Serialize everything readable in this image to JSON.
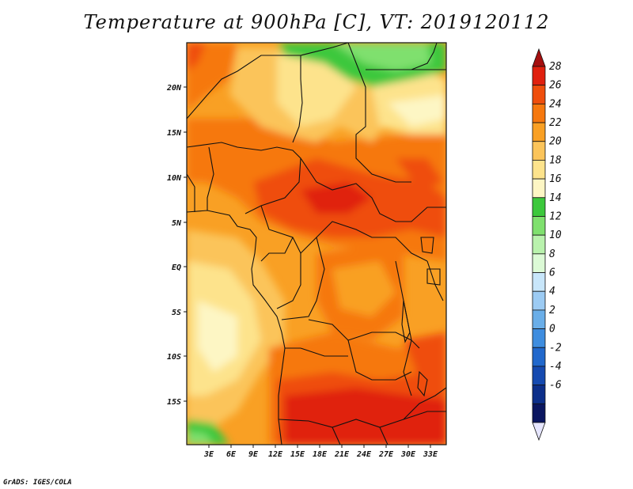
{
  "title": "Temperature at 900hPa [C], VT: 2019120112",
  "credit": "GrADS: IGES/COLA",
  "lat_labels": [
    "20N",
    "15N",
    "10N",
    "5N",
    "EQ",
    "5S",
    "10S",
    "15S"
  ],
  "lon_labels": [
    "3E",
    "6E",
    "9E",
    "12E",
    "15E",
    "18E",
    "21E",
    "24E",
    "27E",
    "30E",
    "33E"
  ],
  "colorbar": {
    "labels": [
      "28",
      "26",
      "24",
      "22",
      "20",
      "18",
      "16",
      "14",
      "12",
      "10",
      "8",
      "6",
      "4",
      "2",
      "0",
      "-2",
      "-4",
      "-6"
    ],
    "colors": [
      "#a50f0f",
      "#e0200e",
      "#ef4e0c",
      "#f6780e",
      "#f9a024",
      "#fbc45a",
      "#fde38c",
      "#fdf6c4",
      "#3cc83c",
      "#7fe06e",
      "#b9f2ad",
      "#dcfad6",
      "#c8e6fa",
      "#9ccbf3",
      "#6aaee8",
      "#3e8ddf",
      "#2168cc",
      "#154ab0",
      "#0c2f8a",
      "#0a1660",
      "#e6e6ff"
    ]
  }
}
